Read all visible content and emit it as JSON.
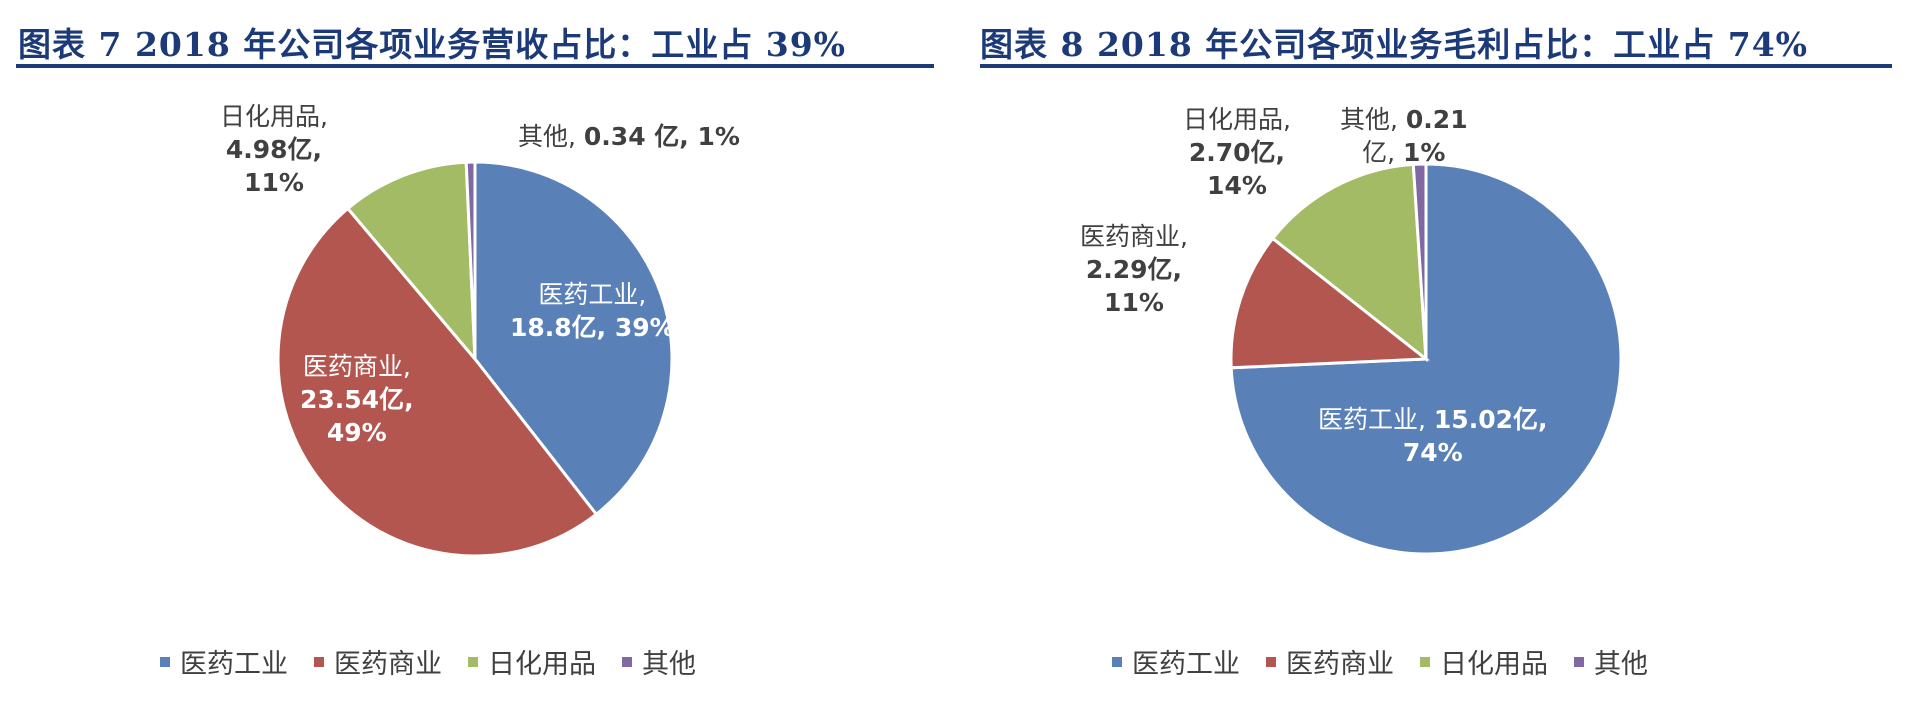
{
  "chart_data": [
    {
      "type": "pie",
      "title": "图表 7   2018 年公司各项业务营收占比：工业占 39%",
      "categories": [
        "医药工业",
        "医药商业",
        "日化用品",
        "其他"
      ],
      "values": [
        18.8,
        23.54,
        4.98,
        0.34
      ],
      "percents": [
        39,
        49,
        11,
        1
      ],
      "unit": "亿",
      "colors": [
        "#5a80b8",
        "#b3564f",
        "#a2bb64",
        "#8068a3"
      ],
      "labels": [
        "医药工业,|18.8亿, 39%",
        "医药商业,|23.54亿,|49%",
        "日化用品,|4.98亿,|11%",
        "其他, 0.34 亿, 1%"
      ],
      "legend": {
        "position": "bottom",
        "entries": [
          "医药工业",
          "医药商业",
          "日化用品",
          "其他"
        ]
      }
    },
    {
      "type": "pie",
      "title": "图表 8   2018 年公司各项业务毛利占比：工业占 74%",
      "categories": [
        "医药工业",
        "医药商业",
        "日化用品",
        "其他"
      ],
      "values": [
        15.02,
        2.29,
        2.7,
        0.21
      ],
      "percents": [
        74,
        11,
        14,
        1
      ],
      "unit": "亿",
      "colors": [
        "#5a80b8",
        "#b3564f",
        "#a2bb64",
        "#8068a3"
      ],
      "labels": [
        "医药工业, 15.02亿,|74%",
        "医药商业,|2.29亿,|11%",
        "日化用品,|2.70亿,|14%",
        "其他, 0.21|亿, 1%"
      ],
      "legend": {
        "position": "bottom",
        "entries": [
          "医药工业",
          "医药商业",
          "日化用品",
          "其他"
        ]
      }
    }
  ]
}
